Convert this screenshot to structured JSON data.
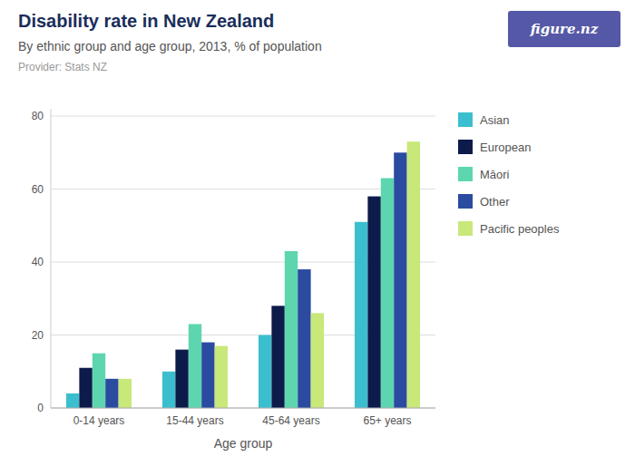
{
  "chart_data": {
    "type": "bar",
    "title": "Disability rate in New Zealand",
    "subtitle": "By ethnic group and age group, 2013, % of population",
    "source": "Provider: Stats NZ",
    "annotations": [
      {
        "text": "figure.nz",
        "color": "#5558A6"
      }
    ],
    "xlabel": "Age group",
    "categories": [
      "0-14 years",
      "15-44 years",
      "45-64 years",
      "65+ years"
    ],
    "series": [
      {
        "name": "Asian",
        "color": "#3BBFCF",
        "values": [
          4,
          10,
          20,
          51
        ]
      },
      {
        "name": "European",
        "color": "#0D1B4B",
        "values": [
          11,
          16,
          28,
          58
        ]
      },
      {
        "name": "Māori",
        "color": "#5DD6B0",
        "values": [
          15,
          23,
          43,
          63
        ]
      },
      {
        "name": "Other",
        "color": "#2B4BA0",
        "values": [
          8,
          18,
          38,
          70
        ]
      },
      {
        "name": "Pacific peoples",
        "color": "#C8E87A",
        "values": [
          8,
          17,
          26,
          73
        ]
      }
    ],
    "ylim": [
      0,
      82
    ],
    "yticks": [
      0,
      20,
      40,
      60,
      80
    ],
    "grid": true,
    "legend": "right"
  }
}
